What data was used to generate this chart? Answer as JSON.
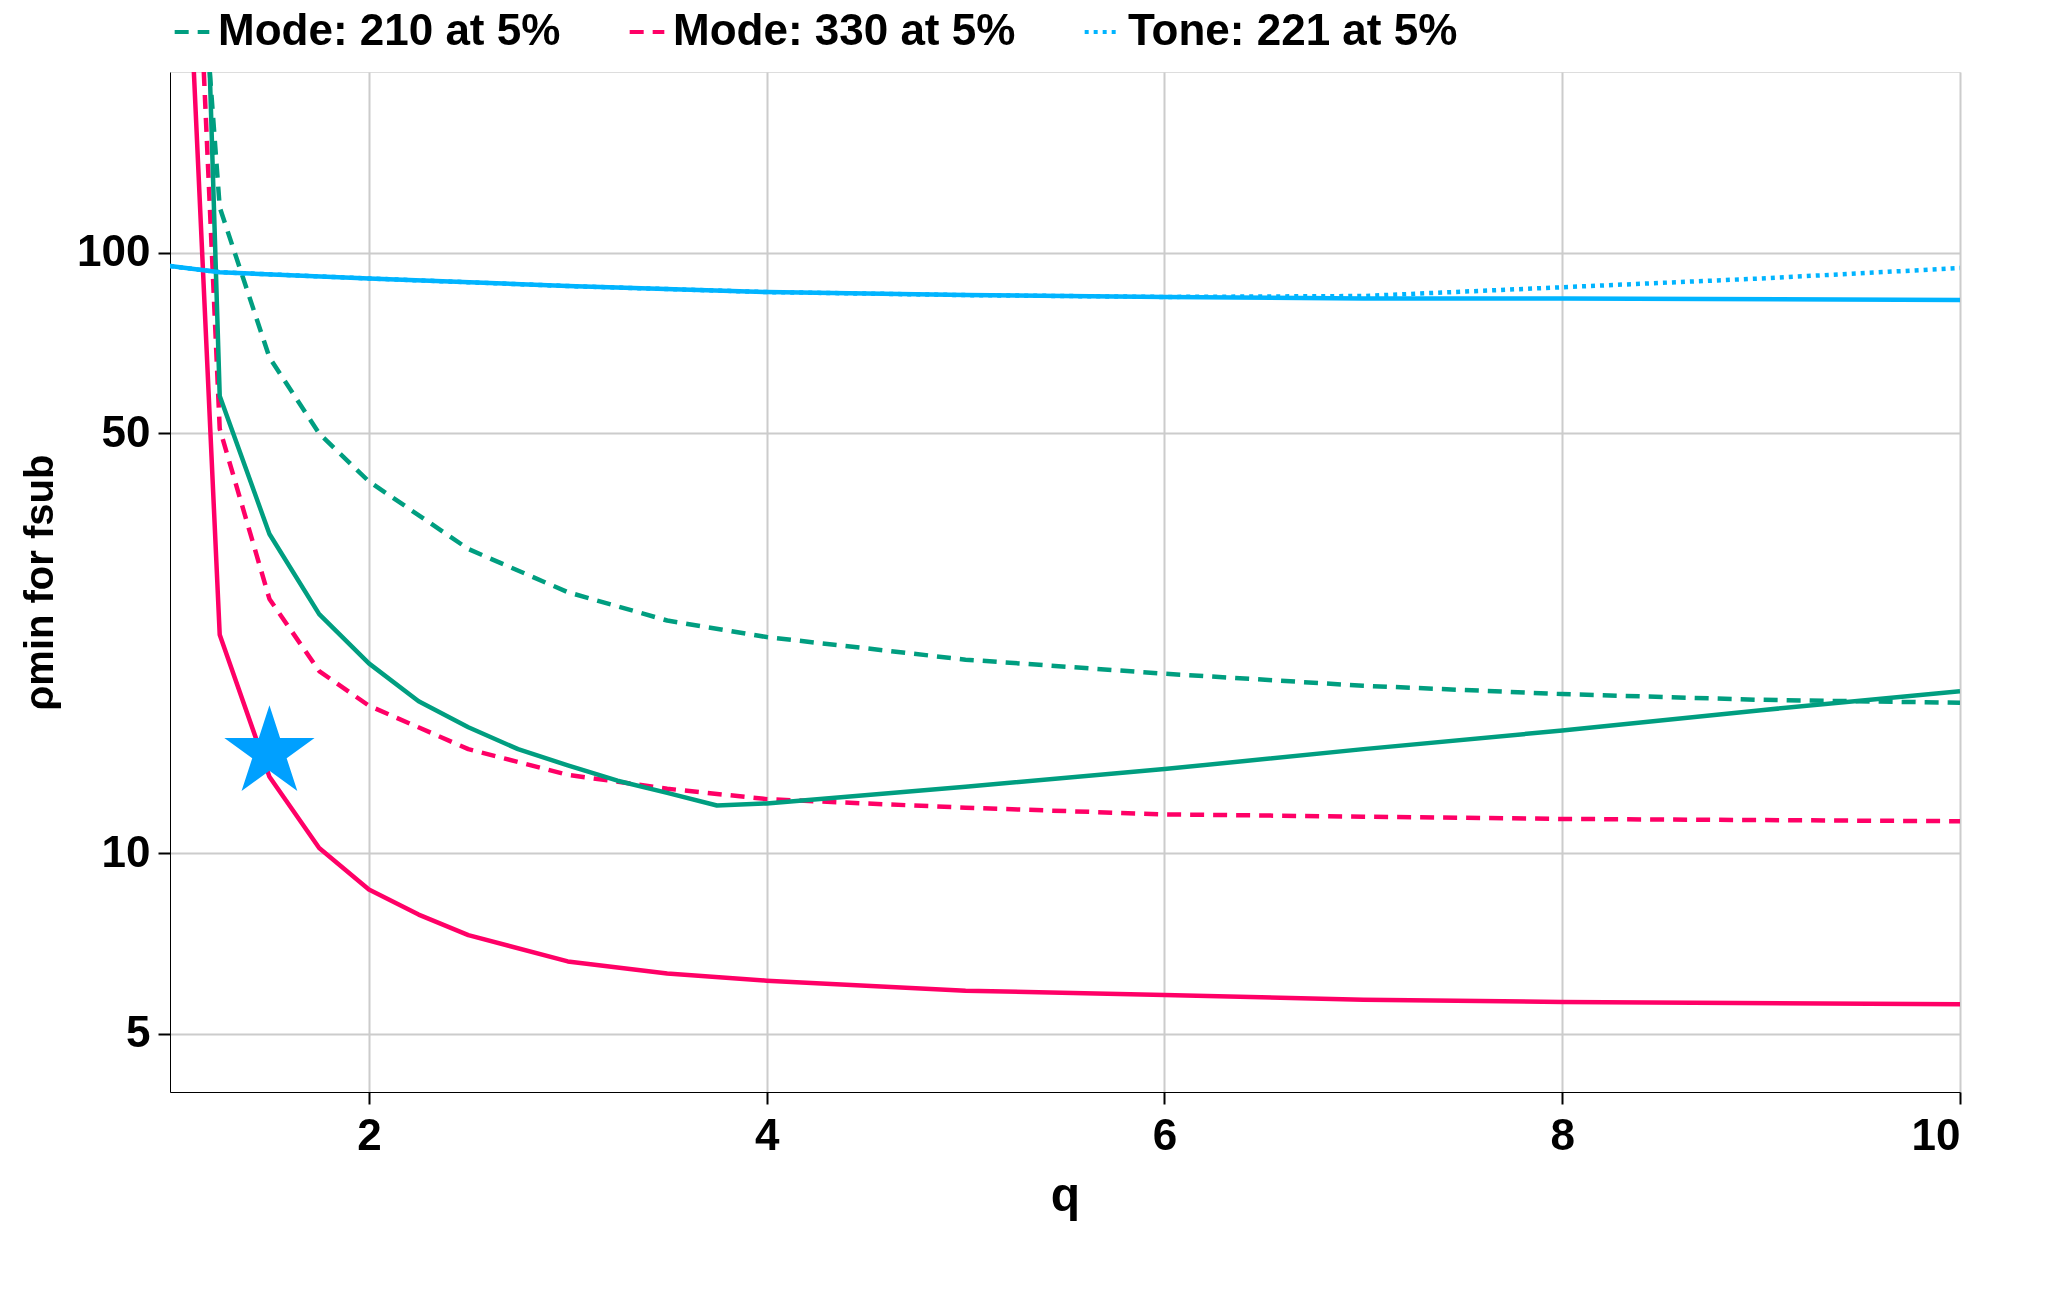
{
  "chart_data": {
    "type": "line",
    "xlabel": "q",
    "ylabel": "ρmin for fsub",
    "xlim": [
      1,
      10
    ],
    "xticks": [
      2,
      4,
      6,
      8,
      10
    ],
    "ylim": [
      4,
      200
    ],
    "yticks": [
      5,
      10,
      50,
      100
    ],
    "log": "y",
    "grid": true,
    "legend": "top",
    "series": [
      {
        "name": "Mode: 210 at 5%",
        "color": "#009e80",
        "line_style": "dashed",
        "x": [
          1.2,
          1.25,
          1.5,
          1.75,
          2,
          2.5,
          3,
          3.5,
          4,
          5,
          6,
          7,
          8,
          9,
          10
        ],
        "values": [
          200,
          119,
          66.9,
          50,
          41.6,
          32.1,
          27.2,
          24.4,
          22.9,
          21.0,
          19.9,
          19.0,
          18.4,
          18.0,
          17.8
        ]
      },
      {
        "name": "Mode: 330 at 5%",
        "color": "#ff0066",
        "line_style": "dashed",
        "x": [
          1.17,
          1.25,
          1.5,
          1.75,
          2,
          2.5,
          3,
          3.5,
          4,
          5,
          6,
          7,
          8,
          10
        ],
        "values": [
          200,
          50.9,
          26.5,
          20.1,
          17.6,
          14.9,
          13.5,
          12.8,
          12.3,
          11.9,
          11.6,
          11.5,
          11.4,
          11.3
        ]
      },
      {
        "name": "Tone: 221 at 5%",
        "color": "#00b4ff",
        "line_style": "dotted",
        "x": [
          1,
          1.25,
          2,
          3,
          4,
          5,
          6,
          7,
          8,
          9,
          10
        ],
        "values": [
          95,
          92.8,
          90.6,
          88,
          86,
          85,
          84.4,
          84.7,
          87.6,
          90.6,
          94.3
        ]
      },
      {
        "color": "#009e80",
        "line_style": "solid",
        "x": [
          1.2,
          1.25,
          1.5,
          1.75,
          2,
          2.25,
          2.5,
          2.75,
          3,
          3.25,
          3.5,
          3.75,
          4,
          5,
          6,
          7,
          8,
          9,
          10
        ],
        "values": [
          200,
          57.7,
          34.0,
          25.0,
          20.7,
          17.9,
          16.2,
          14.9,
          14.0,
          13.2,
          12.6,
          12.0,
          12.1,
          12.9,
          13.8,
          14.9,
          16.0,
          17.3,
          18.6
        ]
      },
      {
        "color": "#ff0066",
        "line_style": "solid",
        "x": [
          1.12,
          1.25,
          1.5,
          1.75,
          2,
          2.25,
          2.5,
          3,
          3.5,
          4,
          5,
          6,
          7,
          8,
          10
        ],
        "values": [
          200,
          23.1,
          13.4,
          10.2,
          8.7,
          7.9,
          7.3,
          6.6,
          6.3,
          6.13,
          5.9,
          5.8,
          5.7,
          5.65,
          5.6
        ]
      },
      {
        "color": "#00b4ff",
        "line_style": "solid",
        "x": [
          1,
          1.25,
          2,
          3,
          4,
          5,
          6,
          7,
          8,
          10
        ],
        "values": [
          95,
          92.8,
          90.6,
          88,
          86,
          85,
          84.4,
          83.9,
          83.9,
          83.4
        ]
      },
      {
        "type": "scatter",
        "marker": "star",
        "color": "#00a0ff",
        "x": [
          1.5
        ],
        "values": [
          14.7
        ]
      }
    ]
  }
}
